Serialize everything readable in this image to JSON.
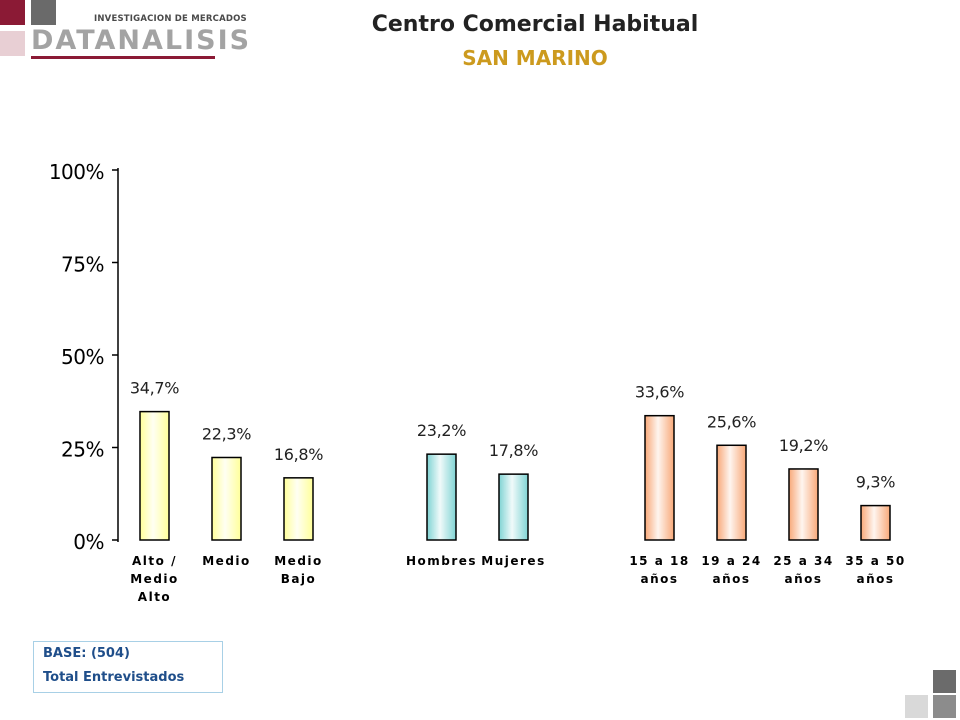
{
  "header": {
    "logo_small_text": "INVESTIGACION DE MERCADOS",
    "logo_brand": "DATANALISIS",
    "title": "Centro Comercial Habitual",
    "subtitle": "SAN MARINO"
  },
  "base": {
    "line1": "BASE:  (504)",
    "line2": "Total Entrevistados"
  },
  "colors": {
    "brand_maroon": "#8b1a35",
    "subtitle_gold": "#cc9a1e",
    "group_socioeconomic": "#ffff99",
    "group_gender": "#7fd3d3",
    "group_age": "#f8a878"
  },
  "chart_data": {
    "type": "bar",
    "ylim": [
      0,
      100
    ],
    "yticks": [
      "0%",
      "25%",
      "50%",
      "75%",
      "100%"
    ],
    "grid": false,
    "groups": [
      {
        "color": "#ffff99",
        "bars": [
          {
            "label": [
              "Alto /",
              "Medio",
              "Alto"
            ],
            "value": 34.7,
            "value_label": "34,7%"
          },
          {
            "label": [
              "Medio"
            ],
            "value": 22.3,
            "value_label": "22,3%"
          },
          {
            "label": [
              "Medio",
              "Bajo"
            ],
            "value": 16.8,
            "value_label": "16,8%"
          }
        ]
      },
      {
        "color": "#7fd3d3",
        "bars": [
          {
            "label": [
              "Hombres"
            ],
            "value": 23.2,
            "value_label": "23,2%"
          },
          {
            "label": [
              "Mujeres"
            ],
            "value": 17.8,
            "value_label": "17,8%"
          }
        ]
      },
      {
        "color": "#f8a878",
        "bars": [
          {
            "label": [
              "15 a 18",
              "años"
            ],
            "value": 33.6,
            "value_label": "33,6%"
          },
          {
            "label": [
              "19 a 24",
              "años"
            ],
            "value": 25.6,
            "value_label": "25,6%"
          },
          {
            "label": [
              "25 a 34",
              "años"
            ],
            "value": 19.2,
            "value_label": "19,2%"
          },
          {
            "label": [
              "35 a 50",
              "años"
            ],
            "value": 9.3,
            "value_label": "9,3%"
          }
        ]
      }
    ]
  }
}
